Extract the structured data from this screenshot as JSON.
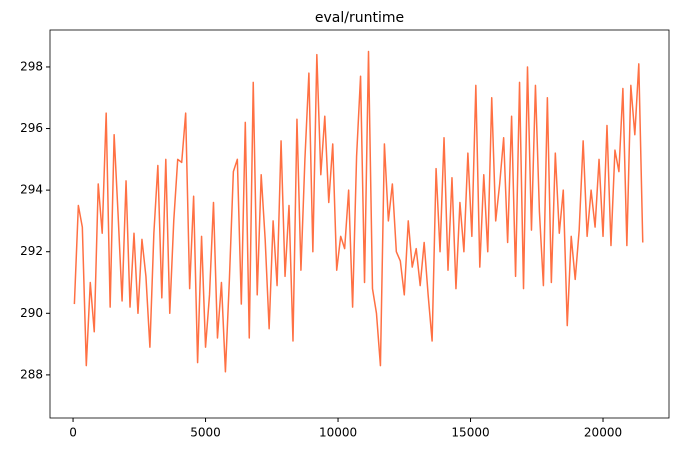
{
  "chart_data": {
    "type": "line",
    "title": "eval/runtime",
    "x": [
      50,
      200,
      350,
      500,
      650,
      800,
      950,
      1100,
      1250,
      1400,
      1550,
      1700,
      1850,
      2000,
      2150,
      2300,
      2450,
      2600,
      2750,
      2900,
      3050,
      3200,
      3350,
      3500,
      3650,
      3800,
      3950,
      4100,
      4250,
      4400,
      4550,
      4700,
      4850,
      5000,
      5150,
      5300,
      5450,
      5600,
      5750,
      5900,
      6050,
      6200,
      6350,
      6500,
      6650,
      6800,
      6950,
      7100,
      7250,
      7400,
      7550,
      7700,
      7850,
      8000,
      8150,
      8300,
      8450,
      8600,
      8750,
      8900,
      9050,
      9200,
      9350,
      9500,
      9650,
      9800,
      9950,
      10100,
      10250,
      10400,
      10550,
      10700,
      10850,
      11000,
      11150,
      11300,
      11450,
      11600,
      11750,
      11900,
      12050,
      12200,
      12350,
      12500,
      12650,
      12800,
      12950,
      13100,
      13250,
      13400,
      13550,
      13700,
      13850,
      14000,
      14150,
      14300,
      14450,
      14600,
      14750,
      14900,
      15050,
      15200,
      15350,
      15500,
      15650,
      15800,
      15950,
      16100,
      16250,
      16400,
      16550,
      16700,
      16850,
      17000,
      17150,
      17300,
      17450,
      17600,
      17750,
      17900,
      18050,
      18200,
      18350,
      18500,
      18650,
      18800,
      18950,
      19100,
      19250,
      19400,
      19550,
      19700,
      19850,
      20000,
      20150,
      20300,
      20450,
      20600,
      20750,
      20900,
      21050,
      21200,
      21350,
      21500
    ],
    "series": [
      {
        "name": "eval/runtime",
        "color": "#ff7043",
        "values": [
          290.3,
          293.5,
          292.8,
          288.3,
          291.0,
          289.4,
          294.2,
          292.6,
          296.5,
          290.2,
          295.8,
          293.2,
          290.4,
          294.3,
          290.2,
          292.6,
          290.0,
          292.4,
          291.2,
          288.9,
          292.6,
          294.8,
          290.5,
          295.0,
          290.0,
          293.0,
          295.0,
          294.9,
          296.5,
          290.8,
          293.8,
          288.4,
          292.5,
          288.9,
          290.6,
          293.6,
          289.2,
          291.0,
          288.1,
          291.1,
          294.6,
          295.0,
          290.3,
          296.2,
          289.2,
          297.5,
          290.6,
          294.5,
          292.4,
          289.5,
          293.0,
          290.9,
          295.6,
          291.2,
          293.5,
          289.1,
          296.3,
          291.4,
          295.0,
          297.8,
          292.0,
          298.4,
          294.5,
          296.4,
          293.6,
          295.5,
          291.4,
          292.5,
          292.1,
          294.0,
          290.2,
          295.1,
          297.7,
          291.0,
          298.5,
          290.8,
          290.0,
          288.3,
          295.5,
          293.0,
          294.2,
          292.0,
          291.7,
          290.6,
          293.0,
          291.5,
          292.1,
          290.9,
          292.3,
          290.6,
          289.1,
          294.7,
          292.0,
          295.7,
          291.4,
          294.4,
          290.8,
          293.6,
          292.0,
          295.2,
          292.5,
          297.4,
          291.5,
          294.5,
          292.0,
          297.0,
          293.0,
          294.2,
          295.7,
          292.3,
          296.4,
          291.2,
          297.5,
          290.8,
          298.0,
          292.7,
          297.4,
          293.3,
          290.9,
          297.0,
          291.0,
          295.2,
          292.6,
          294.0,
          289.6,
          292.5,
          291.1,
          292.7,
          295.6,
          292.5,
          294.0,
          292.8,
          295.0,
          292.5,
          296.1,
          292.2,
          295.3,
          294.6,
          297.3,
          292.2,
          297.4,
          295.8,
          298.1,
          292.3
        ]
      }
    ],
    "xlim": [
      -870,
      22490
    ],
    "ylim": [
      286.6,
      299.2
    ],
    "xticks": [
      0,
      5000,
      10000,
      15000,
      20000
    ],
    "yticks": [
      288,
      290,
      292,
      294,
      296,
      298
    ]
  }
}
